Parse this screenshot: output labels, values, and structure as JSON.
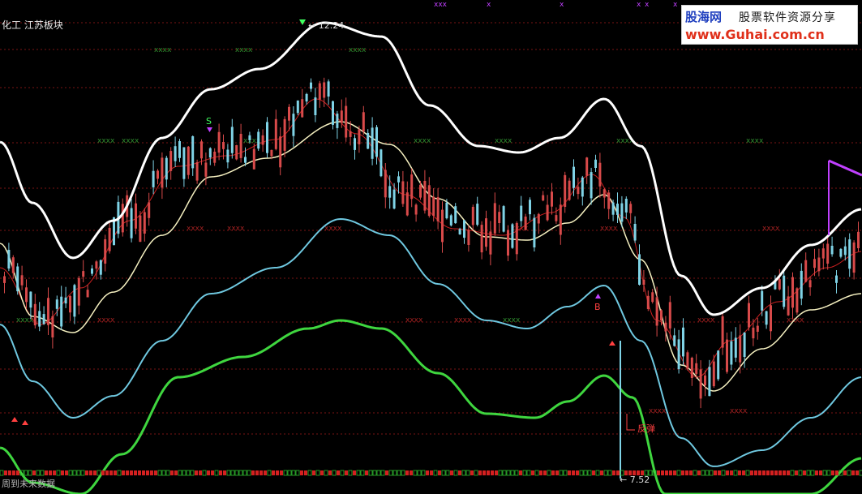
{
  "chart_header": {
    "title": "化工 江苏板块"
  },
  "chart_bottom": {
    "label": "周到未来数据"
  },
  "watermark": {
    "brand": "股海网",
    "slogan": "股票软件资源分享",
    "url": "www.Guhai.com.cn"
  },
  "markers": {
    "high_price": "12.24",
    "low_price": "7.52",
    "sell_signal": "S",
    "buy_signal": "B",
    "rebound_label": "反弹"
  },
  "colors": {
    "background": "#000000",
    "up_candle": "#d84a4a",
    "down_candle": "#7fd3e6",
    "upper_band": "#ffffff",
    "mid_band": "#f5f0c0",
    "lower_band": "#6fc8e0",
    "bottom_band": "#3fd63f",
    "ma_line": "#cc2020",
    "dashed_levels": "#7a1414",
    "x_markers_green": "#2e8b2e",
    "x_markers_red": "#a02020",
    "signal_magenta": "#c040ff",
    "signal_green": "#40ff60",
    "signal_red": "#ff4040"
  }
}
